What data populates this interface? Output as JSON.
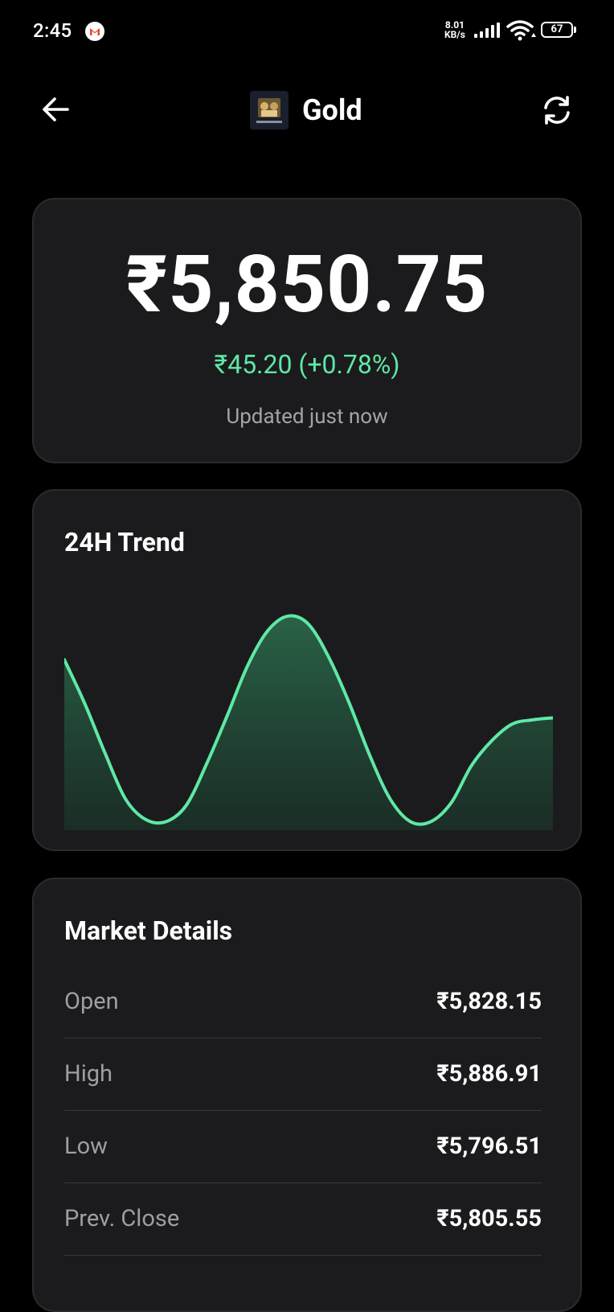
{
  "status_bar": {
    "time": "2:45",
    "net_speed_value": "8.01",
    "net_speed_unit": "KB/s",
    "battery": "67"
  },
  "header": {
    "title": "Gold",
    "logo_icon": "gold-asset-logo",
    "back_icon": "arrow-left-icon",
    "refresh_icon": "refresh-icon"
  },
  "price": {
    "value": "₹5,850.75",
    "change": "₹45.20 (+0.78%)",
    "updated": "Updated just now",
    "change_color": "#5fe8a6"
  },
  "trend": {
    "title": "24H Trend"
  },
  "chart_data": {
    "type": "area",
    "title": "24H Trend",
    "xlabel": "",
    "ylabel": "",
    "x": [
      0,
      1,
      2,
      3,
      4,
      5,
      6,
      7,
      8,
      9,
      10,
      11,
      12,
      13,
      14,
      15,
      16,
      17,
      18,
      19,
      20,
      21,
      22,
      23,
      24
    ],
    "values": [
      0.79,
      0.58,
      0.34,
      0.12,
      0.02,
      0.01,
      0.09,
      0.29,
      0.52,
      0.76,
      0.93,
      1.0,
      0.96,
      0.8,
      0.58,
      0.33,
      0.12,
      0.01,
      0.01,
      0.1,
      0.28,
      0.4,
      0.48,
      0.5,
      0.51
    ],
    "ylim": [
      0,
      1.1
    ],
    "line_color": "#5fe8a6",
    "grid": false,
    "axes_visible": false
  },
  "details": {
    "title": "Market Details",
    "rows": [
      {
        "label": "Open",
        "value": "₹5,828.15"
      },
      {
        "label": "High",
        "value": "₹5,886.91"
      },
      {
        "label": "Low",
        "value": "₹5,796.51"
      },
      {
        "label": "Prev. Close",
        "value": "₹5,805.55"
      }
    ]
  }
}
